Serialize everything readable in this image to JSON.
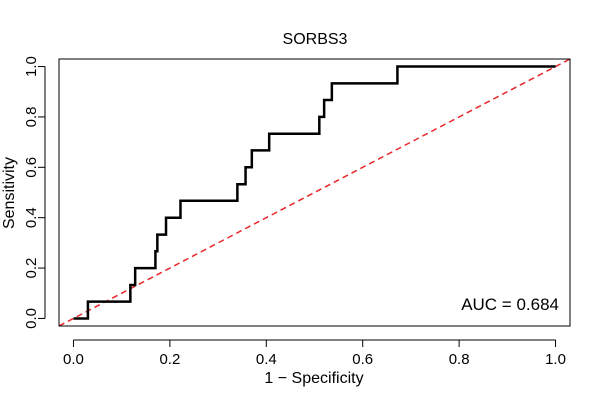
{
  "chart_data": {
    "type": "line",
    "title": "SORBS3",
    "xlabel": "1 − Specificity",
    "ylabel": "Sensitivity",
    "xlim": [
      -0.03,
      1.03
    ],
    "ylim": [
      -0.03,
      1.03
    ],
    "x_ticks": [
      0.0,
      0.2,
      0.4,
      0.6,
      0.8,
      1.0
    ],
    "x_tick_labels": [
      "0.0",
      "0.2",
      "0.4",
      "0.6",
      "0.8",
      "1.0"
    ],
    "y_ticks": [
      0.0,
      0.2,
      0.4,
      0.6,
      0.8,
      1.0
    ],
    "y_tick_labels": [
      "0.0",
      "0.2",
      "0.4",
      "0.6",
      "0.8",
      "1.0"
    ],
    "grid": false,
    "annotation": "AUC = 0.684",
    "series": [
      {
        "name": "ROC curve",
        "color": "#000000",
        "style": "solid",
        "points": [
          [
            0.0,
            0.0
          ],
          [
            0.03,
            0.0
          ],
          [
            0.03,
            0.067
          ],
          [
            0.118,
            0.067
          ],
          [
            0.118,
            0.133
          ],
          [
            0.128,
            0.133
          ],
          [
            0.128,
            0.2
          ],
          [
            0.17,
            0.2
          ],
          [
            0.17,
            0.267
          ],
          [
            0.174,
            0.267
          ],
          [
            0.174,
            0.333
          ],
          [
            0.192,
            0.333
          ],
          [
            0.192,
            0.4
          ],
          [
            0.222,
            0.4
          ],
          [
            0.222,
            0.467
          ],
          [
            0.34,
            0.467
          ],
          [
            0.34,
            0.533
          ],
          [
            0.357,
            0.533
          ],
          [
            0.357,
            0.6
          ],
          [
            0.37,
            0.6
          ],
          [
            0.37,
            0.667
          ],
          [
            0.406,
            0.667
          ],
          [
            0.406,
            0.733
          ],
          [
            0.51,
            0.733
          ],
          [
            0.51,
            0.8
          ],
          [
            0.52,
            0.8
          ],
          [
            0.52,
            0.867
          ],
          [
            0.536,
            0.867
          ],
          [
            0.536,
            0.933
          ],
          [
            0.672,
            0.933
          ],
          [
            0.672,
            1.0
          ],
          [
            1.0,
            1.0
          ]
        ]
      },
      {
        "name": "chance line",
        "color": "#e8282b",
        "style": "dashed",
        "points": [
          [
            -0.03,
            -0.03
          ],
          [
            1.03,
            1.03
          ]
        ]
      }
    ]
  }
}
